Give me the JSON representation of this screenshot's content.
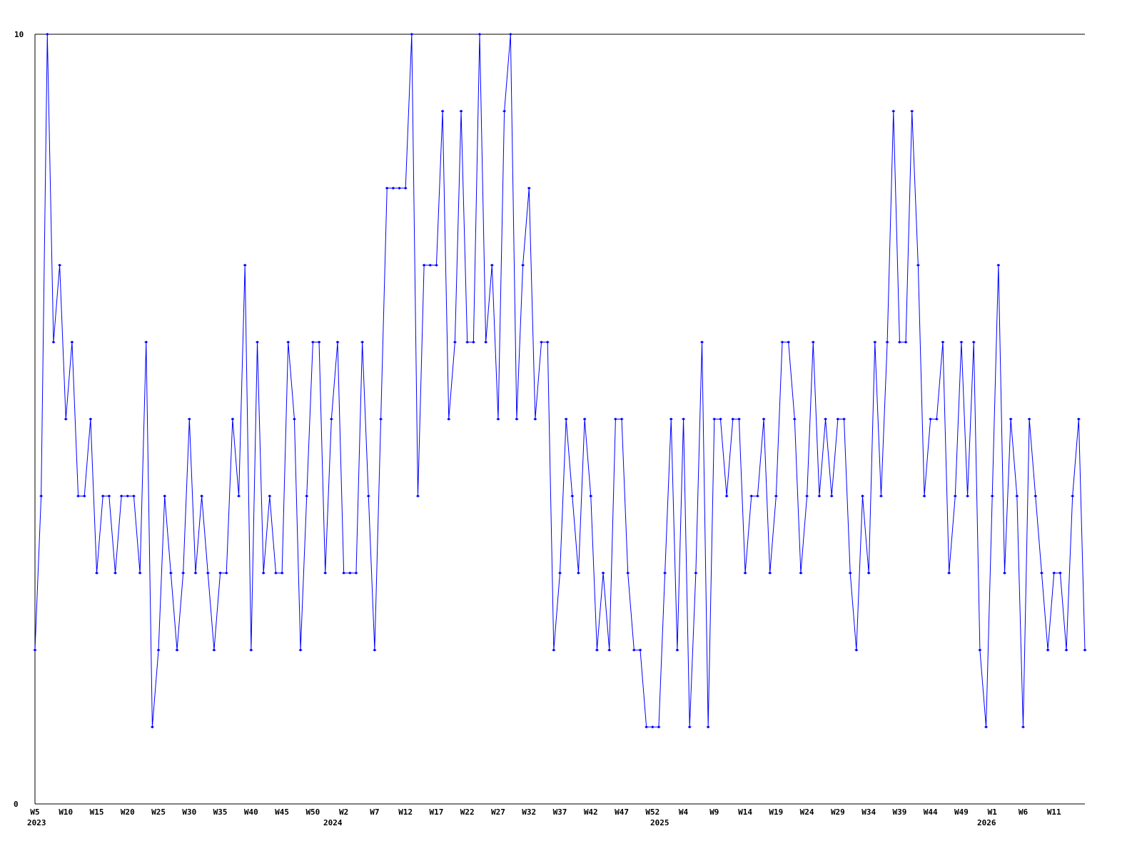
{
  "chart_data": {
    "type": "line",
    "title": "",
    "xlabel": "",
    "ylabel": "",
    "ylim": [
      0,
      10
    ],
    "y_ticks": [
      "0",
      "10"
    ],
    "grid": false,
    "line_color": "#0000ff",
    "axis_color": "#000000",
    "x_ticks": [
      {
        "label": "W5",
        "index": 0
      },
      {
        "label": "W10",
        "index": 5
      },
      {
        "label": "W15",
        "index": 10
      },
      {
        "label": "W20",
        "index": 15
      },
      {
        "label": "W25",
        "index": 20
      },
      {
        "label": "W30",
        "index": 25
      },
      {
        "label": "W35",
        "index": 30
      },
      {
        "label": "W40",
        "index": 35
      },
      {
        "label": "W45",
        "index": 40
      },
      {
        "label": "W50",
        "index": 45
      },
      {
        "label": "W2",
        "index": 50
      },
      {
        "label": "W7",
        "index": 55
      },
      {
        "label": "W12",
        "index": 60
      },
      {
        "label": "W17",
        "index": 65
      },
      {
        "label": "W22",
        "index": 70
      },
      {
        "label": "W27",
        "index": 75
      },
      {
        "label": "W32",
        "index": 80
      },
      {
        "label": "W37",
        "index": 85
      },
      {
        "label": "W42",
        "index": 90
      },
      {
        "label": "W47",
        "index": 95
      },
      {
        "label": "W52",
        "index": 100
      },
      {
        "label": "W4",
        "index": 105
      },
      {
        "label": "W9",
        "index": 110
      },
      {
        "label": "W14",
        "index": 115
      },
      {
        "label": "W19",
        "index": 120
      },
      {
        "label": "W24",
        "index": 125
      },
      {
        "label": "W29",
        "index": 130
      },
      {
        "label": "W34",
        "index": 135
      },
      {
        "label": "W39",
        "index": 140
      },
      {
        "label": "W44",
        "index": 145
      },
      {
        "label": "W49",
        "index": 150
      },
      {
        "label": "W1",
        "index": 155
      },
      {
        "label": "W6",
        "index": 160
      },
      {
        "label": "W11",
        "index": 165
      }
    ],
    "year_labels": [
      "2023",
      "2024",
      "2025",
      "2026"
    ],
    "values": [
      2,
      4,
      10,
      6,
      7,
      5,
      6,
      4,
      4,
      5,
      3,
      4,
      4,
      3,
      4,
      4,
      4,
      3,
      6,
      1,
      2,
      4,
      3,
      2,
      3,
      5,
      3,
      4,
      3,
      2,
      3,
      3,
      5,
      4,
      7,
      2,
      6,
      3,
      4,
      3,
      3,
      6,
      5,
      2,
      4,
      6,
      6,
      3,
      5,
      6,
      3,
      3,
      3,
      6,
      4,
      2,
      5,
      8,
      8,
      8,
      8,
      10,
      4,
      7,
      7,
      7,
      9,
      5,
      6,
      9,
      6,
      6,
      10,
      6,
      7,
      5,
      9,
      10,
      5,
      7,
      8,
      5,
      6,
      6,
      2,
      3,
      5,
      4,
      3,
      5,
      4,
      2,
      3,
      2,
      5,
      5,
      3,
      2,
      2,
      1,
      1,
      1,
      3,
      5,
      2,
      5,
      1,
      3,
      6,
      1,
      5,
      5,
      4,
      5,
      5,
      3,
      4,
      4,
      5,
      3,
      4,
      6,
      6,
      5,
      3,
      4,
      6,
      4,
      5,
      4,
      5,
      5,
      3,
      2,
      4,
      3,
      6,
      4,
      6,
      9,
      6,
      6,
      9,
      7,
      4,
      5,
      5,
      6,
      3,
      4,
      6,
      4,
      6,
      2,
      1,
      4,
      7,
      3,
      5,
      4,
      1,
      5,
      4,
      3,
      2,
      3,
      3,
      2,
      4,
      5,
      2
    ]
  }
}
